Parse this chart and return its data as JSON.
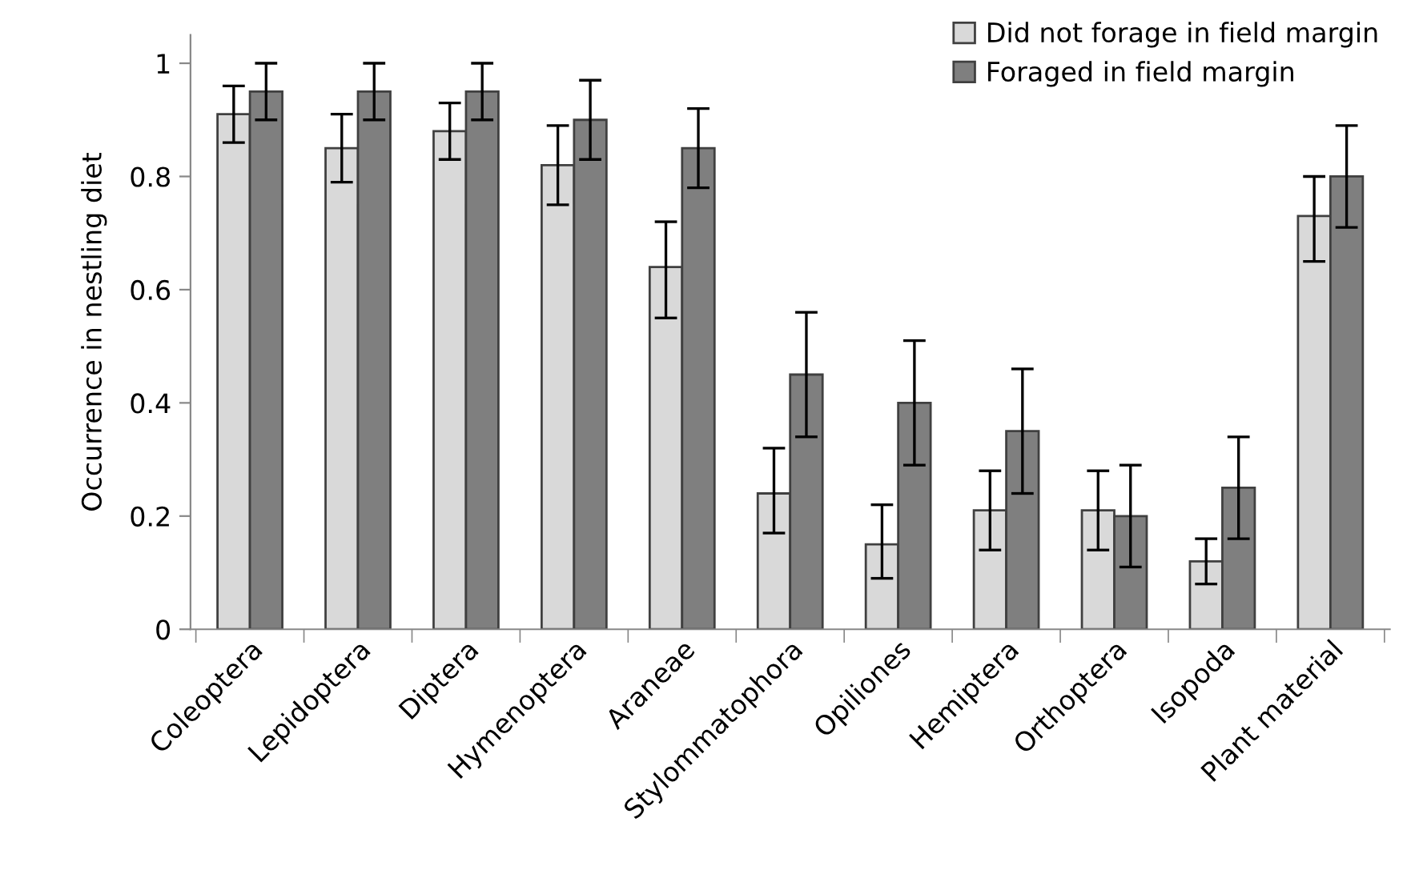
{
  "chart_data": {
    "type": "bar",
    "ylabel": "Occurrence in nestling diet",
    "categories": [
      "Coleoptera",
      "Lepidoptera",
      "Diptera",
      "Hymenoptera",
      "Araneae",
      "Stylommatophora",
      "Opiliones",
      "Hemiptera",
      "Orthoptera",
      "Isopoda",
      "Plant material"
    ],
    "series": [
      {
        "name": "Did not forage in field margin",
        "color": "#d9d9d9",
        "values": [
          0.91,
          0.85,
          0.88,
          0.82,
          0.64,
          0.24,
          0.15,
          0.21,
          0.21,
          0.12,
          0.73
        ],
        "errors": [
          [
            0.86,
            0.96
          ],
          [
            0.79,
            0.91
          ],
          [
            0.83,
            0.93
          ],
          [
            0.75,
            0.89
          ],
          [
            0.55,
            0.72
          ],
          [
            0.17,
            0.32
          ],
          [
            0.09,
            0.22
          ],
          [
            0.14,
            0.28
          ],
          [
            0.14,
            0.28
          ],
          [
            0.08,
            0.16
          ],
          [
            0.65,
            0.8
          ]
        ]
      },
      {
        "name": "Foraged in field margin",
        "color": "#7f7f7f",
        "values": [
          0.95,
          0.95,
          0.95,
          0.9,
          0.85,
          0.45,
          0.4,
          0.35,
          0.2,
          0.25,
          0.8
        ],
        "errors": [
          [
            0.9,
            1.0
          ],
          [
            0.9,
            1.0
          ],
          [
            0.9,
            1.0
          ],
          [
            0.83,
            0.97
          ],
          [
            0.78,
            0.92
          ],
          [
            0.34,
            0.56
          ],
          [
            0.29,
            0.51
          ],
          [
            0.24,
            0.46
          ],
          [
            0.11,
            0.29
          ],
          [
            0.16,
            0.34
          ],
          [
            0.71,
            0.89
          ]
        ]
      }
    ],
    "ylim": [
      0,
      1.05
    ],
    "yticks": [
      0,
      0.2,
      0.4,
      0.6,
      0.8,
      1
    ],
    "grid": false,
    "legend": "top right"
  }
}
